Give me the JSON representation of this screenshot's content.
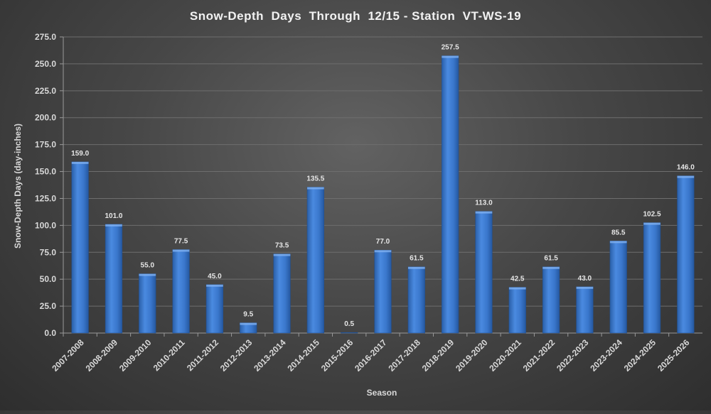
{
  "chart_data": {
    "type": "bar",
    "title": "Snow-Depth  Days  Through  12/15 - Station  VT-WS-19",
    "xlabel": "Season",
    "ylabel": "Snow-Depth Days (day-inches)",
    "ylim": [
      0,
      275
    ],
    "y_tick_step": 25,
    "y_tick_labels": [
      "0.0",
      "25.0",
      "50.0",
      "75.0",
      "100.0",
      "125.0",
      "150.0",
      "175.0",
      "200.0",
      "225.0",
      "250.0",
      "275.0"
    ],
    "grid": true,
    "legend": "none",
    "bar_color": "#3f7fd4",
    "categories": [
      "2007-2008",
      "2008-2009",
      "2009-2010",
      "2010-2011",
      "2011-2012",
      "2012-2013",
      "2013-2014",
      "2014-2015",
      "2015-2016",
      "2016-2017",
      "2017-2018",
      "2018-2019",
      "2019-2020",
      "2020-2021",
      "2021-2022",
      "2022-2023",
      "2023-2024",
      "2024-2025",
      "2025-2026"
    ],
    "values": [
      159.0,
      101.0,
      55.0,
      77.5,
      45.0,
      9.5,
      73.5,
      135.5,
      0.5,
      77.0,
      61.5,
      257.5,
      113.0,
      42.5,
      61.5,
      43.0,
      85.5,
      102.5,
      146.0
    ],
    "value_labels": [
      "159.0",
      "101.0",
      "55.0",
      "77.5",
      "45.0",
      "9.5",
      "73.5",
      "135.5",
      "0.5",
      "77.0",
      "61.5",
      "257.5",
      "113.0",
      "42.5",
      "61.5",
      "43.0",
      "85.5",
      "102.5",
      "146.0"
    ]
  }
}
